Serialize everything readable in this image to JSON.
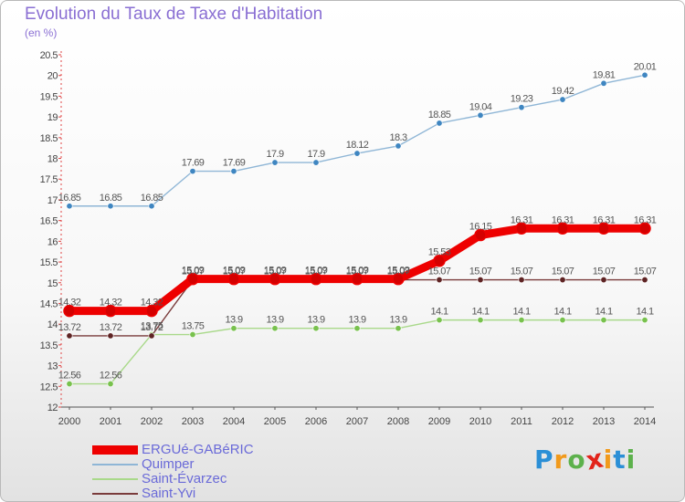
{
  "title": "Evolution du Taux de Taxe d'Habitation",
  "unit": "(en %)",
  "logo": {
    "letters": [
      "P",
      "r",
      "o",
      "x",
      "i",
      "t",
      "i"
    ],
    "colors": [
      "#2b8fd6",
      "#f19a1c",
      "#5db14c",
      "#e2231a",
      "#f19a1c",
      "#2b8fd6",
      "#5db14c"
    ]
  },
  "chart_data": {
    "type": "line",
    "x": [
      2000,
      2001,
      2002,
      2003,
      2004,
      2005,
      2006,
      2007,
      2008,
      2009,
      2010,
      2011,
      2012,
      2013,
      2014
    ],
    "x_tick_labels": [
      "2000",
      "2001",
      "2002",
      "2003",
      "2004",
      "2005",
      "2006",
      "2007",
      "2008",
      "2009",
      "2010",
      "2011",
      "2012",
      "2013",
      "2014"
    ],
    "ylim": [
      12,
      20.5
    ],
    "y_ticks": [
      12,
      12.5,
      13,
      13.5,
      14,
      14.5,
      15,
      15.5,
      16,
      16.5,
      17,
      17.5,
      18,
      18.5,
      19,
      19.5,
      20,
      20.5
    ],
    "y_tick_labels": [
      "12",
      "12.5",
      "13",
      "13.5",
      "14",
      "14.5",
      "15",
      "15.5",
      "16",
      "16.5",
      "17",
      "17.5",
      "18",
      "18.5",
      "19",
      "19.5",
      "20",
      "20.5"
    ],
    "grid": false,
    "legend_position": "bottom-left",
    "series": [
      {
        "name": "ERGUé-GABéRIC",
        "color": "#ee0000",
        "marker_color": "#d40000",
        "emphasis": "thick",
        "values": [
          14.32,
          14.32,
          14.32,
          15.09,
          15.09,
          15.09,
          15.09,
          15.09,
          15.09,
          15.53,
          16.15,
          16.31,
          16.31,
          16.31,
          16.31
        ],
        "labels": [
          "14.32",
          "14.32",
          "14.32",
          "15.09",
          "15.09",
          "15.09",
          "15.09",
          "15.09",
          "15.09",
          "15.53",
          "16.15",
          "16.31",
          "16.31",
          "16.31",
          "16.31"
        ]
      },
      {
        "name": "Quimper",
        "color": "#8fb6d6",
        "marker_color": "#3f86c1",
        "emphasis": "normal",
        "values": [
          16.85,
          16.85,
          16.85,
          17.69,
          17.69,
          17.9,
          17.9,
          18.12,
          18.3,
          18.85,
          19.04,
          19.23,
          19.42,
          19.81,
          20.01
        ],
        "labels": [
          "16.85",
          "16.85",
          "16.85",
          "17.69",
          "17.69",
          "17.9",
          "17.9",
          "18.12",
          "18.3",
          "18.85",
          "19.04",
          "19.23",
          "19.42",
          "19.81",
          "20.01"
        ]
      },
      {
        "name": "Saint-Évarzec",
        "color": "#a9d98a",
        "marker_color": "#78c14d",
        "emphasis": "normal",
        "values": [
          12.56,
          12.56,
          13.75,
          13.75,
          13.9,
          13.9,
          13.9,
          13.9,
          13.9,
          14.1,
          14.1,
          14.1,
          14.1,
          14.1,
          14.1
        ],
        "labels": [
          "12.56",
          "12.56",
          "13.75",
          "13.75",
          "13.9",
          "13.9",
          "13.9",
          "13.9",
          "13.9",
          "14.1",
          "14.1",
          "14.1",
          "14.1",
          "14.1",
          "14.1"
        ]
      },
      {
        "name": "Saint-Yvi",
        "color": "#7a3b3b",
        "marker_color": "#5e2323",
        "emphasis": "normal",
        "values": [
          13.72,
          13.72,
          13.72,
          15.07,
          15.07,
          15.07,
          15.07,
          15.07,
          15.07,
          15.07,
          15.07,
          15.07,
          15.07,
          15.07,
          15.07
        ],
        "labels": [
          "13.72",
          "13.72",
          "13.72",
          "15.07",
          "15.07",
          "15.07",
          "15.07",
          "15.07",
          "15.07",
          "15.07",
          "15.07",
          "15.07",
          "15.07",
          "15.07",
          "15.07"
        ]
      }
    ]
  }
}
